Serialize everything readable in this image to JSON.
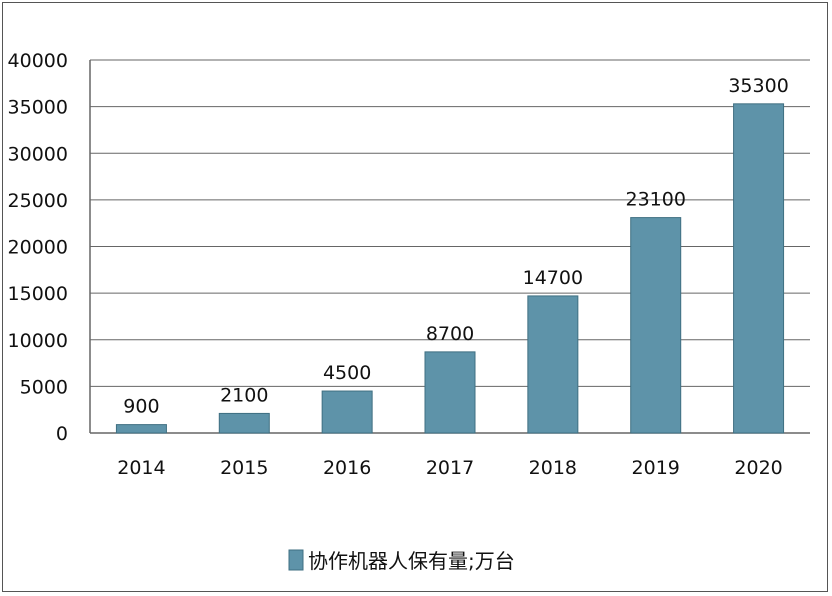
{
  "chart_data": {
    "type": "bar",
    "categories": [
      "2014",
      "2015",
      "2016",
      "2017",
      "2018",
      "2019",
      "2020"
    ],
    "series": [
      {
        "name": "协作机器人保有量;万台",
        "values": [
          900,
          2100,
          4500,
          8700,
          14700,
          23100,
          35300
        ],
        "color": "#5e93a9"
      }
    ],
    "data_labels": [
      "900",
      "2100",
      "4500",
      "8700",
      "14700",
      "23100",
      "35300"
    ],
    "y_ticks": [
      "0",
      "5000",
      "10000",
      "15000",
      "20000",
      "25000",
      "30000",
      "35000",
      "40000"
    ],
    "ylim": [
      0,
      40000
    ],
    "grid": true,
    "legend_position": "bottom"
  }
}
